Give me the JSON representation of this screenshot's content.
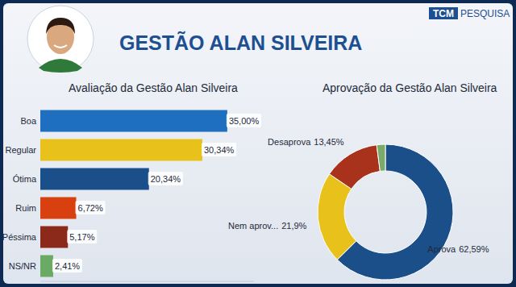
{
  "header": {
    "title": "GESTÃO ALAN SILVEIRA",
    "logo": {
      "brand": "TCM",
      "text": "PESQUISA"
    }
  },
  "chart_data": [
    {
      "type": "bar",
      "title": "Avaliação da Gestão Alan Silveira",
      "orientation": "horizontal",
      "categories": [
        "Boa",
        "Regular",
        "Ótima",
        "Ruim",
        "Péssima",
        "NS/NR"
      ],
      "values": [
        35.0,
        30.34,
        20.34,
        6.72,
        5.17,
        2.41
      ],
      "value_labels": [
        "35,00%",
        "30,34%",
        "20,34%",
        "6,72%",
        "5,17%",
        "2,41%"
      ],
      "colors": [
        "#1f6fc1",
        "#e8c21a",
        "#1b4f8a",
        "#d9400f",
        "#8b2a1a",
        "#6aaa64"
      ],
      "xlim": [
        0,
        40
      ],
      "grid": false,
      "data_labels": true,
      "tick_labels": "y"
    },
    {
      "type": "donut",
      "title": "Aprovação da Gestão Alan Silveira",
      "categories": [
        "Aprova",
        "Nem aprov...",
        "Desaprova",
        null
      ],
      "values": [
        62.59,
        21.9,
        13.45,
        2.06
      ],
      "value_labels": [
        "62,59%",
        "21,9%",
        "13,45%",
        null
      ],
      "colors": [
        "#1b4f8a",
        "#e8c21a",
        "#a8321c",
        "#7aaa6a"
      ],
      "data_labels": true
    }
  ]
}
